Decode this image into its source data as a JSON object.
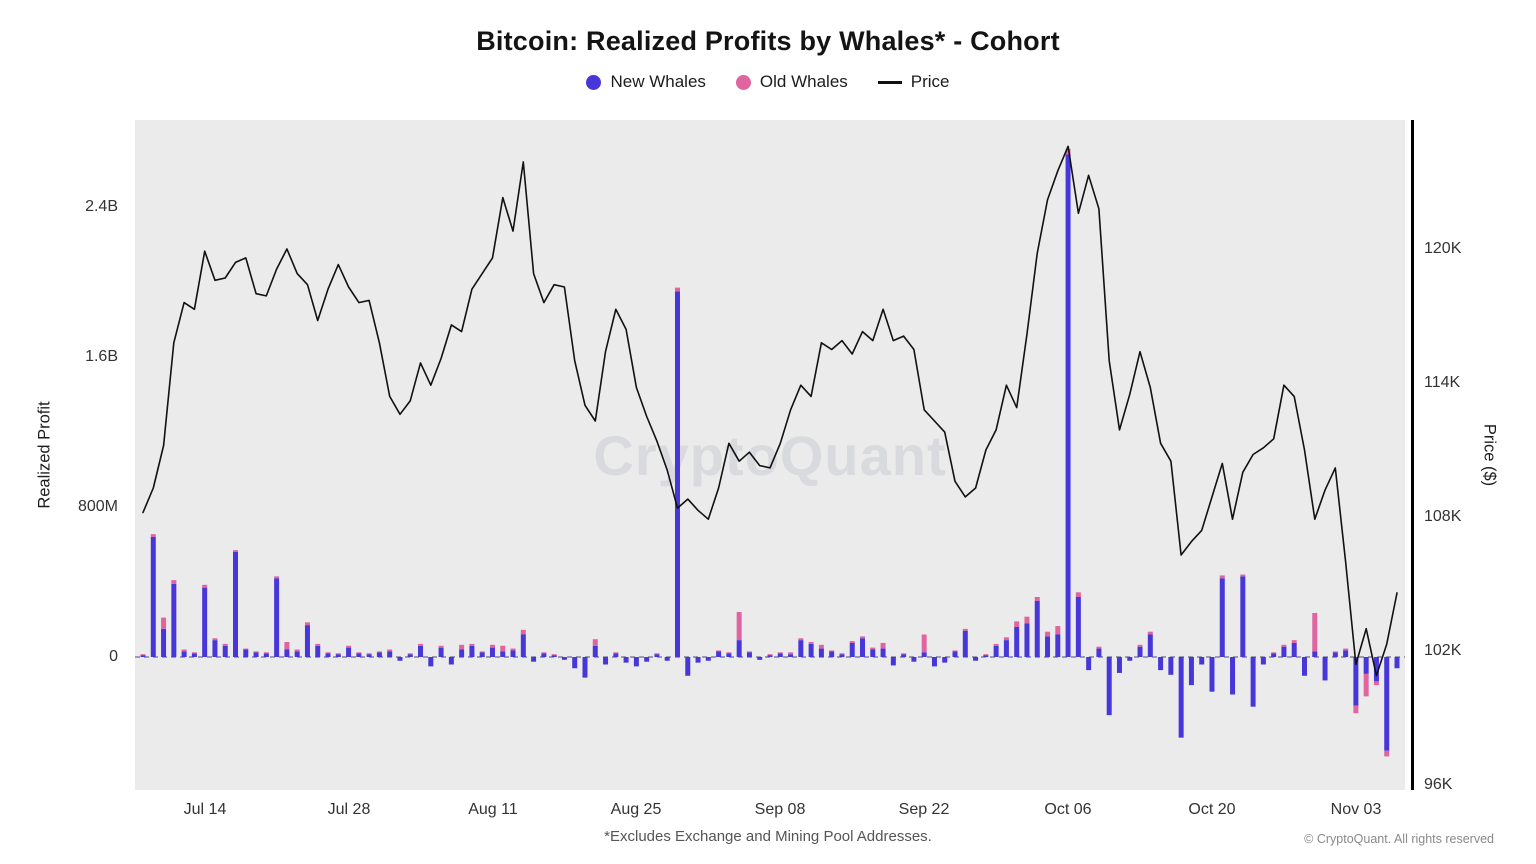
{
  "title": "Bitcoin: Realized Profits by Whales* - Cohort",
  "watermark": "CryptoQuant",
  "footnote": "*Excludes Exchange and Mining Pool Addresses.",
  "copyright": "© CryptoQuant. All rights reserved",
  "legend": {
    "items": [
      {
        "label": "New Whales",
        "color": "#4837d8",
        "marker": "dot"
      },
      {
        "label": "Old Whales",
        "color": "#e0649f",
        "marker": "dot"
      },
      {
        "label": "Price",
        "color": "#111111",
        "marker": "line"
      }
    ]
  },
  "left_axis": {
    "label": "Realized Profit",
    "ticks": [
      "2.4B",
      "1.6B",
      "800M",
      "0"
    ]
  },
  "right_axis": {
    "label": "Price ($)",
    "ticks": [
      "120K",
      "114K",
      "108K",
      "102K",
      "96K"
    ]
  },
  "x_axis": {
    "ticks": [
      "Jul 14",
      "Jul 28",
      "Aug 11",
      "Aug 25",
      "Sep 08",
      "Sep 22",
      "Oct 06",
      "Oct 20",
      "Nov 03"
    ]
  },
  "chart_data": {
    "type": "bar",
    "subtype": "stacked-bars-with-line-overlay",
    "title": "Bitcoin: Realized Profits by Whales* - Cohort",
    "ylabel_left": "Realized Profit",
    "ylabel_right": "Price ($)",
    "left_axis_range_m": [
      -710,
      2880
    ],
    "right_axis_range_k": [
      95.8,
      125.8
    ],
    "plot_bg": "#ebebeb",
    "grid": false,
    "legend_position": "top-center",
    "x_ticks": [
      "Jul 14",
      "Jul 28",
      "Aug 11",
      "Aug 25",
      "Sep 08",
      "Sep 22",
      "Oct 06",
      "Oct 20",
      "Nov 03"
    ],
    "x_dates": [
      "Jul 08",
      "Jul 09",
      "Jul 10",
      "Jul 11",
      "Jul 12",
      "Jul 13",
      "Jul 14",
      "Jul 15",
      "Jul 16",
      "Jul 17",
      "Jul 18",
      "Jul 19",
      "Jul 20",
      "Jul 21",
      "Jul 22",
      "Jul 23",
      "Jul 24",
      "Jul 25",
      "Jul 26",
      "Jul 27",
      "Jul 28",
      "Jul 29",
      "Jul 30",
      "Jul 31",
      "Aug 01",
      "Aug 02",
      "Aug 03",
      "Aug 04",
      "Aug 05",
      "Aug 06",
      "Aug 07",
      "Aug 08",
      "Aug 09",
      "Aug 10",
      "Aug 11",
      "Aug 12",
      "Aug 13",
      "Aug 14",
      "Aug 15",
      "Aug 16",
      "Aug 17",
      "Aug 18",
      "Aug 19",
      "Aug 20",
      "Aug 21",
      "Aug 22",
      "Aug 23",
      "Aug 24",
      "Aug 25",
      "Aug 26",
      "Aug 27",
      "Aug 28",
      "Aug 29",
      "Aug 30",
      "Aug 31",
      "Sep 01",
      "Sep 02",
      "Sep 03",
      "Sep 04",
      "Sep 05",
      "Sep 06",
      "Sep 07",
      "Sep 08",
      "Sep 09",
      "Sep 10",
      "Sep 11",
      "Sep 12",
      "Sep 13",
      "Sep 14",
      "Sep 15",
      "Sep 16",
      "Sep 17",
      "Sep 18",
      "Sep 19",
      "Sep 20",
      "Sep 21",
      "Sep 22",
      "Sep 23",
      "Sep 24",
      "Sep 25",
      "Sep 26",
      "Sep 27",
      "Sep 28",
      "Sep 29",
      "Sep 30",
      "Oct 01",
      "Oct 02",
      "Oct 03",
      "Oct 04",
      "Oct 05",
      "Oct 06",
      "Oct 07",
      "Oct 08",
      "Oct 09",
      "Oct 10",
      "Oct 11",
      "Oct 12",
      "Oct 13",
      "Oct 14",
      "Oct 15",
      "Oct 16",
      "Oct 17",
      "Oct 18",
      "Oct 19",
      "Oct 20",
      "Oct 21",
      "Oct 22",
      "Oct 23",
      "Oct 24",
      "Oct 25",
      "Oct 26",
      "Oct 27",
      "Oct 28",
      "Oct 29",
      "Oct 30",
      "Oct 31",
      "Nov 01",
      "Nov 02",
      "Nov 03",
      "Nov 04",
      "Nov 05",
      "Nov 06",
      "Nov 07"
    ],
    "series": [
      {
        "name": "New Whales",
        "type": "bar",
        "color": "#4837d8",
        "unit": "USD millions",
        "values_m": [
          10,
          640,
          150,
          390,
          30,
          20,
          370,
          90,
          60,
          560,
          40,
          25,
          20,
          420,
          40,
          30,
          170,
          60,
          20,
          15,
          50,
          20,
          15,
          25,
          30,
          -20,
          15,
          60,
          -50,
          50,
          -40,
          40,
          60,
          25,
          50,
          30,
          35,
          120,
          -25,
          20,
          10,
          -15,
          -60,
          -110,
          60,
          -40,
          20,
          -30,
          -50,
          -25,
          15,
          -20,
          1950,
          -100,
          -30,
          -20,
          30,
          20,
          90,
          25,
          -15,
          10,
          20,
          15,
          90,
          70,
          45,
          30,
          15,
          75,
          100,
          40,
          45,
          -45,
          15,
          -25,
          25,
          -50,
          -30,
          30,
          140,
          -20,
          10,
          60,
          90,
          160,
          180,
          300,
          110,
          120,
          2680,
          320,
          -70,
          45,
          -310,
          -85,
          -20,
          55,
          120,
          -70,
          -95,
          -430,
          -150,
          -40,
          -185,
          420,
          -200,
          430,
          -265,
          -40,
          20,
          55,
          75,
          -100,
          30,
          -125,
          25,
          35,
          -260,
          -90,
          -130,
          -500,
          -60
        ]
      },
      {
        "name": "Old Whales",
        "type": "bar",
        "color": "#e0649f",
        "unit": "USD millions",
        "values_m": [
          5,
          15,
          60,
          20,
          10,
          5,
          15,
          10,
          10,
          10,
          5,
          5,
          5,
          10,
          40,
          10,
          15,
          10,
          5,
          5,
          10,
          5,
          5,
          5,
          10,
          0,
          5,
          10,
          0,
          10,
          0,
          25,
          10,
          5,
          15,
          30,
          10,
          25,
          0,
          5,
          5,
          0,
          0,
          0,
          35,
          0,
          5,
          0,
          0,
          0,
          5,
          0,
          20,
          0,
          0,
          0,
          5,
          5,
          150,
          5,
          0,
          5,
          5,
          10,
          10,
          10,
          20,
          5,
          5,
          10,
          10,
          10,
          30,
          0,
          5,
          0,
          95,
          0,
          0,
          5,
          10,
          0,
          5,
          10,
          15,
          30,
          35,
          20,
          25,
          45,
          30,
          25,
          0,
          10,
          0,
          0,
          0,
          10,
          15,
          0,
          0,
          0,
          0,
          0,
          0,
          15,
          0,
          10,
          0,
          0,
          5,
          10,
          15,
          0,
          205,
          0,
          5,
          10,
          -40,
          -120,
          -20,
          -30,
          0
        ]
      },
      {
        "name": "Price",
        "type": "line",
        "color": "#111111",
        "unit": "USD thousands",
        "values_k": [
          108.2,
          109.3,
          111.2,
          115.8,
          117.6,
          117.3,
          119.9,
          118.6,
          118.7,
          119.4,
          119.6,
          118.0,
          117.9,
          119.1,
          120.0,
          118.9,
          118.4,
          116.8,
          118.2,
          119.3,
          118.3,
          117.6,
          117.7,
          115.8,
          113.4,
          112.6,
          113.2,
          114.9,
          113.9,
          115.1,
          116.6,
          116.3,
          118.2,
          118.9,
          119.6,
          122.3,
          120.8,
          123.9,
          118.9,
          117.6,
          118.4,
          118.3,
          115.0,
          113.0,
          112.3,
          115.4,
          117.3,
          116.4,
          113.8,
          112.5,
          111.4,
          110.1,
          108.4,
          108.8,
          108.3,
          107.9,
          109.3,
          111.3,
          110.5,
          110.9,
          110.3,
          110.2,
          111.3,
          112.8,
          113.9,
          113.4,
          115.8,
          115.5,
          115.9,
          115.3,
          116.3,
          115.9,
          117.3,
          115.9,
          116.1,
          115.5,
          112.8,
          112.3,
          111.8,
          109.6,
          108.9,
          109.3,
          111.0,
          111.9,
          113.9,
          112.9,
          116.2,
          119.8,
          122.2,
          123.5,
          124.6,
          121.6,
          123.3,
          121.8,
          115.0,
          111.9,
          113.5,
          115.4,
          113.8,
          111.3,
          110.5,
          106.3,
          106.9,
          107.4,
          108.9,
          110.4,
          107.9,
          110.0,
          110.8,
          111.1,
          111.5,
          113.9,
          113.4,
          111.0,
          107.9,
          109.2,
          110.2,
          106.0,
          101.4,
          103.0,
          100.9,
          102.3,
          104.6
        ]
      }
    ]
  }
}
